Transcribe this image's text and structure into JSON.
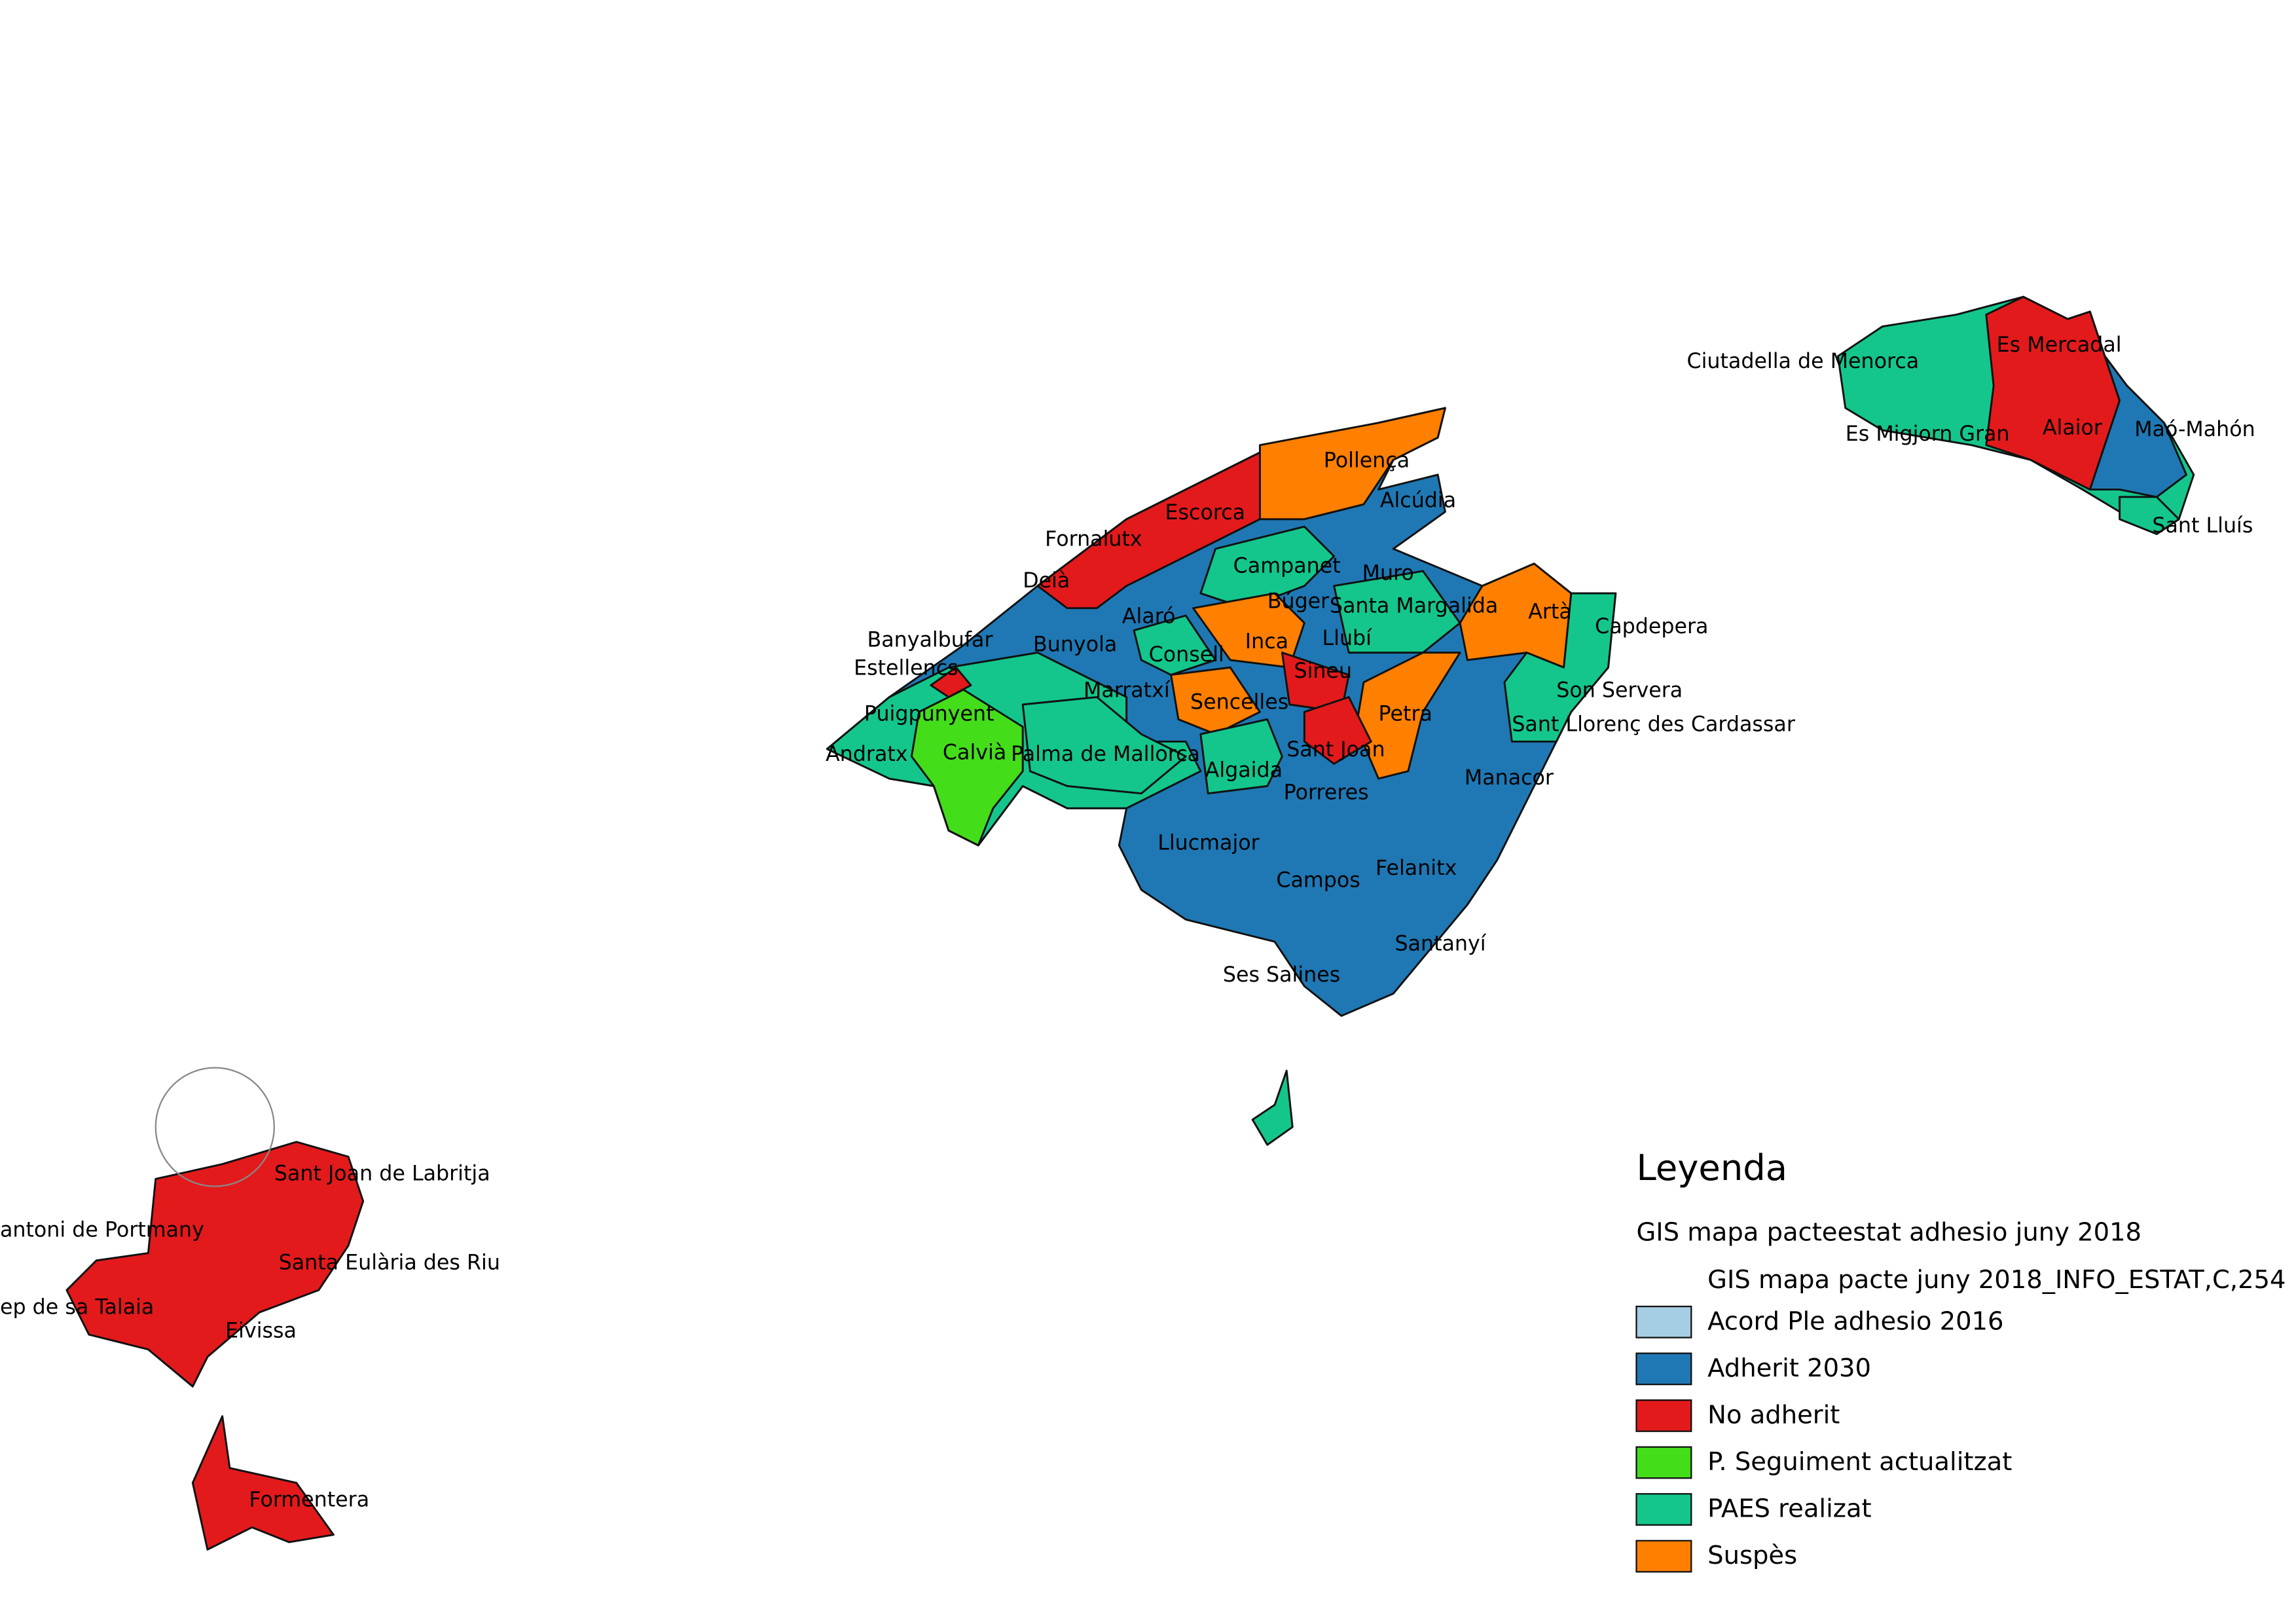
{
  "map": {
    "municipalities": [
      "Pollença",
      "Alcúdia",
      "Escorca",
      "Fornalutx",
      "Campanet",
      "Muro",
      "Deià",
      "Búger",
      "Santa Margalida",
      "Artà",
      "Alaró",
      "Capdepera",
      "Banyalbufar",
      "Inca",
      "Llubí",
      "Bunyola",
      "Consell",
      "Estellencs",
      "Sineu",
      "Sencelles",
      "Marratxí",
      "Son Servera",
      "Puigpunyent",
      "Petra",
      "Sant Llorenç des Cardassar",
      "Andratx",
      "Calvià",
      "Palma de Mallorca",
      "Sant Joan",
      "Algaida",
      "Manacor",
      "Porreres",
      "Llucmajor",
      "Felanitx",
      "Campos",
      "Santanyí",
      "Ses Salines",
      "Ciutadella de Menorca",
      "Es Mercadal",
      "Alaior",
      "Maó-Mahón",
      "Es Migjorn Gran",
      "Sant Lluís",
      "Sant Joan de Labritja",
      "antoni de Portmany",
      "Santa Eulària des Riu",
      "ep de sa Talaia",
      "Eivissa",
      "Formentera"
    ]
  },
  "legend": {
    "title": "Leyenda",
    "layer": "GIS mapa pacteestat adhesio juny 2018",
    "field": "GIS mapa pacte juny 2018_INFO_ESTAT,C,254",
    "items": [
      {
        "label": "Acord Ple adhesio 2016",
        "color": "#a6cee3"
      },
      {
        "label": "Adherit 2030",
        "color": "#1f78b4"
      },
      {
        "label": "No adherit",
        "color": "#e31a1c"
      },
      {
        "label": "P. Seguiment actualitzat",
        "color": "#44dd1a"
      },
      {
        "label": "PAES realizat",
        "color": "#14c68c"
      },
      {
        "label": "Suspès",
        "color": "#ff7f00"
      }
    ]
  }
}
